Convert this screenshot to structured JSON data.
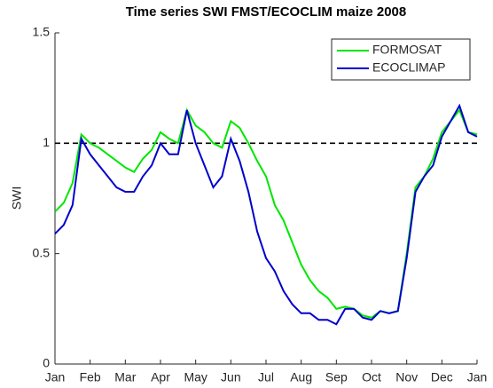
{
  "chart_data": {
    "type": "line",
    "title": "Time series SWI FMST/ECOCLIM maize 2008",
    "y_label": "SWI",
    "categories": [
      "Jan",
      null,
      null,
      null,
      "Feb",
      null,
      null,
      null,
      "Mar",
      null,
      null,
      null,
      "Apr",
      null,
      null,
      null,
      "May",
      null,
      null,
      null,
      "Jun",
      null,
      null,
      null,
      "Jul",
      null,
      null,
      null,
      "Aug",
      null,
      null,
      null,
      "Sep",
      null,
      null,
      null,
      "Oct",
      null,
      null,
      null,
      "Nov",
      null,
      null,
      null,
      "Dec",
      null,
      null,
      null,
      "Jan"
    ],
    "series": [
      {
        "name": "FORMOSAT",
        "color": "#00e600",
        "values": [
          0.69,
          0.73,
          0.82,
          1.04,
          1.0,
          0.98,
          0.95,
          0.92,
          0.89,
          0.87,
          0.93,
          0.97,
          1.05,
          1.02,
          1.0,
          1.15,
          1.08,
          1.05,
          1.0,
          0.98,
          1.1,
          1.07,
          1.0,
          0.92,
          0.85,
          0.72,
          0.65,
          0.55,
          0.45,
          0.38,
          0.33,
          0.3,
          0.25,
          0.26,
          0.25,
          0.22,
          0.21,
          0.24,
          0.23,
          0.24,
          0.5,
          0.8,
          0.85,
          0.93,
          1.05,
          1.1,
          1.15,
          1.05,
          1.04
        ]
      },
      {
        "name": "ECOCLIMAP",
        "color": "#0000cc",
        "values": [
          0.59,
          0.63,
          0.72,
          1.02,
          0.95,
          0.9,
          0.85,
          0.8,
          0.78,
          0.78,
          0.85,
          0.9,
          1.0,
          0.95,
          0.95,
          1.15,
          1.0,
          0.9,
          0.8,
          0.85,
          1.02,
          0.92,
          0.78,
          0.6,
          0.48,
          0.42,
          0.33,
          0.27,
          0.23,
          0.23,
          0.2,
          0.2,
          0.18,
          0.25,
          0.25,
          0.21,
          0.2,
          0.24,
          0.23,
          0.24,
          0.48,
          0.78,
          0.85,
          0.9,
          1.03,
          1.1,
          1.17,
          1.05,
          1.03
        ]
      }
    ],
    "ylim": [
      0,
      1.5
    ],
    "yticks": [
      0,
      0.5,
      1,
      1.5
    ],
    "reference_line": 1,
    "legend": "upper right"
  }
}
